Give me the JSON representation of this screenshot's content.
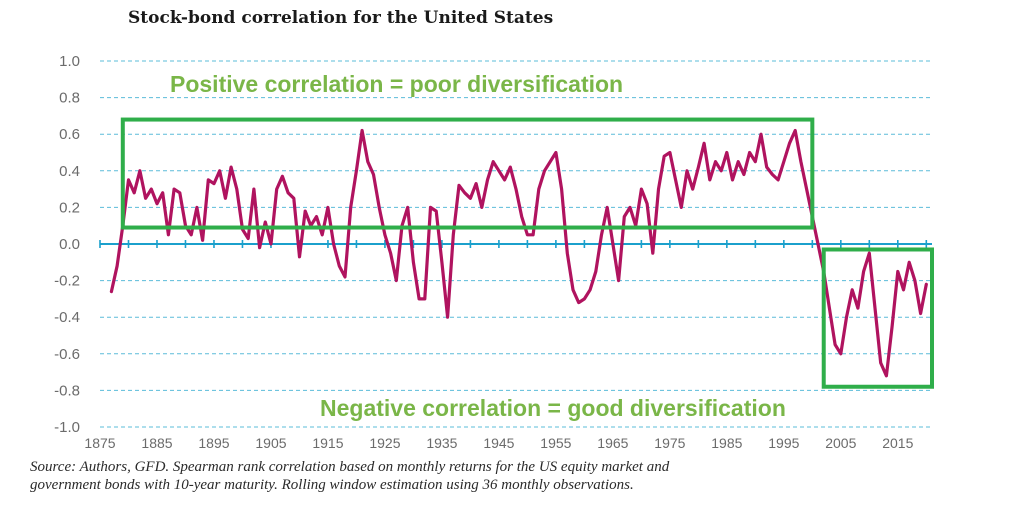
{
  "chart_data": {
    "type": "line",
    "title": "Stock-bond correlation for the United States",
    "xlabel": "",
    "ylabel": "",
    "xlim": [
      1875,
      2021
    ],
    "ylim": [
      -1.0,
      1.0
    ],
    "y_ticks": [
      "1.0",
      "0.8",
      "0.6",
      "0.4",
      "0.2",
      "0.0",
      "-0.2",
      "-0.4",
      "-0.6",
      "-0.8",
      "-1.0"
    ],
    "x_ticks": [
      "1875",
      "1885",
      "1895",
      "1905",
      "1915",
      "1925",
      "1935",
      "1945",
      "1955",
      "1965",
      "1975",
      "1985",
      "1995",
      "2005",
      "2015"
    ],
    "grid": true,
    "series": [
      {
        "name": "Stock-bond correlation",
        "color": "#b0135f",
        "points": [
          [
            1877,
            -0.26
          ],
          [
            1878,
            -0.12
          ],
          [
            1879,
            0.1
          ],
          [
            1880,
            0.35
          ],
          [
            1881,
            0.28
          ],
          [
            1882,
            0.4
          ],
          [
            1883,
            0.25
          ],
          [
            1884,
            0.3
          ],
          [
            1885,
            0.22
          ],
          [
            1886,
            0.28
          ],
          [
            1887,
            0.05
          ],
          [
            1888,
            0.3
          ],
          [
            1889,
            0.28
          ],
          [
            1890,
            0.1
          ],
          [
            1891,
            0.05
          ],
          [
            1892,
            0.2
          ],
          [
            1893,
            0.02
          ],
          [
            1894,
            0.35
          ],
          [
            1895,
            0.33
          ],
          [
            1896,
            0.4
          ],
          [
            1897,
            0.25
          ],
          [
            1898,
            0.42
          ],
          [
            1899,
            0.3
          ],
          [
            1900,
            0.08
          ],
          [
            1901,
            0.03
          ],
          [
            1902,
            0.3
          ],
          [
            1903,
            -0.02
          ],
          [
            1904,
            0.12
          ],
          [
            1905,
            0.0
          ],
          [
            1906,
            0.3
          ],
          [
            1907,
            0.37
          ],
          [
            1908,
            0.28
          ],
          [
            1909,
            0.25
          ],
          [
            1910,
            -0.07
          ],
          [
            1911,
            0.18
          ],
          [
            1912,
            0.1
          ],
          [
            1913,
            0.15
          ],
          [
            1914,
            0.05
          ],
          [
            1915,
            0.2
          ],
          [
            1916,
            0.0
          ],
          [
            1917,
            -0.12
          ],
          [
            1918,
            -0.18
          ],
          [
            1919,
            0.2
          ],
          [
            1920,
            0.4
          ],
          [
            1921,
            0.62
          ],
          [
            1922,
            0.45
          ],
          [
            1923,
            0.38
          ],
          [
            1924,
            0.2
          ],
          [
            1925,
            0.05
          ],
          [
            1926,
            -0.05
          ],
          [
            1927,
            -0.2
          ],
          [
            1928,
            0.1
          ],
          [
            1929,
            0.2
          ],
          [
            1930,
            -0.1
          ],
          [
            1931,
            -0.3
          ],
          [
            1932,
            -0.3
          ],
          [
            1933,
            0.2
          ],
          [
            1934,
            0.18
          ],
          [
            1935,
            -0.1
          ],
          [
            1936,
            -0.4
          ],
          [
            1937,
            0.05
          ],
          [
            1938,
            0.32
          ],
          [
            1939,
            0.28
          ],
          [
            1940,
            0.25
          ],
          [
            1941,
            0.33
          ],
          [
            1942,
            0.2
          ],
          [
            1943,
            0.35
          ],
          [
            1944,
            0.45
          ],
          [
            1945,
            0.4
          ],
          [
            1946,
            0.35
          ],
          [
            1947,
            0.42
          ],
          [
            1948,
            0.3
          ],
          [
            1949,
            0.15
          ],
          [
            1950,
            0.05
          ],
          [
            1951,
            0.05
          ],
          [
            1952,
            0.3
          ],
          [
            1953,
            0.4
          ],
          [
            1954,
            0.45
          ],
          [
            1955,
            0.5
          ],
          [
            1956,
            0.3
          ],
          [
            1957,
            -0.05
          ],
          [
            1958,
            -0.25
          ],
          [
            1959,
            -0.32
          ],
          [
            1960,
            -0.3
          ],
          [
            1961,
            -0.25
          ],
          [
            1962,
            -0.15
          ],
          [
            1963,
            0.05
          ],
          [
            1964,
            0.2
          ],
          [
            1965,
            0.0
          ],
          [
            1966,
            -0.2
          ],
          [
            1967,
            0.15
          ],
          [
            1968,
            0.2
          ],
          [
            1969,
            0.1
          ],
          [
            1970,
            0.3
          ],
          [
            1971,
            0.22
          ],
          [
            1972,
            -0.05
          ],
          [
            1973,
            0.3
          ],
          [
            1974,
            0.48
          ],
          [
            1975,
            0.5
          ],
          [
            1976,
            0.35
          ],
          [
            1977,
            0.2
          ],
          [
            1978,
            0.4
          ],
          [
            1979,
            0.3
          ],
          [
            1980,
            0.42
          ],
          [
            1981,
            0.55
          ],
          [
            1982,
            0.35
          ],
          [
            1983,
            0.45
          ],
          [
            1984,
            0.4
          ],
          [
            1985,
            0.5
          ],
          [
            1986,
            0.35
          ],
          [
            1987,
            0.45
          ],
          [
            1988,
            0.38
          ],
          [
            1989,
            0.5
          ],
          [
            1990,
            0.45
          ],
          [
            1991,
            0.6
          ],
          [
            1992,
            0.42
          ],
          [
            1993,
            0.38
          ],
          [
            1994,
            0.35
          ],
          [
            1995,
            0.45
          ],
          [
            1996,
            0.55
          ],
          [
            1997,
            0.62
          ],
          [
            1998,
            0.45
          ],
          [
            1999,
            0.3
          ],
          [
            2000,
            0.15
          ],
          [
            2001,
            0.0
          ],
          [
            2002,
            -0.15
          ],
          [
            2003,
            -0.35
          ],
          [
            2004,
            -0.55
          ],
          [
            2005,
            -0.6
          ],
          [
            2006,
            -0.4
          ],
          [
            2007,
            -0.25
          ],
          [
            2008,
            -0.35
          ],
          [
            2009,
            -0.15
          ],
          [
            2010,
            -0.05
          ],
          [
            2011,
            -0.35
          ],
          [
            2012,
            -0.65
          ],
          [
            2013,
            -0.72
          ],
          [
            2014,
            -0.45
          ],
          [
            2015,
            -0.15
          ],
          [
            2016,
            -0.25
          ],
          [
            2017,
            -0.1
          ],
          [
            2018,
            -0.2
          ],
          [
            2019,
            -0.38
          ],
          [
            2020,
            -0.22
          ]
        ]
      }
    ],
    "annotations": [
      {
        "text": "Positive correlation = poor diversification",
        "box_range": [
          1879,
          2000,
          0.09,
          0.68
        ]
      },
      {
        "text": "Negative correlation = good diversification",
        "box_range": [
          2002,
          2021,
          -0.78,
          -0.03
        ]
      }
    ],
    "source_note": [
      "Source: Authors, GFD. Spearman rank correlation based on monthly returns for the US equity market and",
      "government bonds with 10-year maturity. Rolling window estimation using 36 monthly observations."
    ],
    "colors": {
      "line": "#b0135f",
      "grid": "#5bbcd9",
      "zero_axis": "#1ba0cc",
      "box": "#2fae4a",
      "annotation_text": "#7ab648"
    }
  }
}
